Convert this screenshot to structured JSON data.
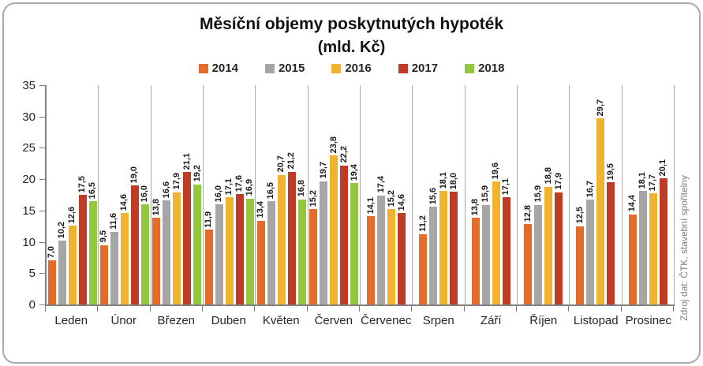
{
  "title": {
    "line1": "Měsíční objemy poskytnutých hypoték",
    "line2": "(mld. Kč)"
  },
  "source_note": "Zdroj dat: ČTK, stavební spořitelny",
  "chart_data": {
    "type": "bar",
    "title": "Měsíční objemy poskytnutých hypoték (mld. Kč)",
    "xlabel": "",
    "ylabel": "",
    "ylim": [
      0,
      35
    ],
    "ytick_step": 5,
    "grid": false,
    "legend_position": "top",
    "value_labels": true,
    "decimal_separator": ",",
    "categories": [
      "Leden",
      "Únor",
      "Březen",
      "Duben",
      "Květen",
      "Červen",
      "Červenec",
      "Srpen",
      "Září",
      "Říjen",
      "Listopad",
      "Prosinec"
    ],
    "series": [
      {
        "name": "2014",
        "color": "#E36C2A",
        "values": [
          7.0,
          9.5,
          13.8,
          11.9,
          13.4,
          15.2,
          14.1,
          11.2,
          13.8,
          12.8,
          12.5,
          14.4
        ]
      },
      {
        "name": "2015",
        "color": "#A6A6A6",
        "values": [
          10.2,
          11.6,
          16.6,
          16.0,
          16.5,
          19.7,
          17.4,
          15.6,
          15.9,
          15.9,
          16.7,
          18.1
        ]
      },
      {
        "name": "2016",
        "color": "#F1B32E",
        "values": [
          12.6,
          14.6,
          17.9,
          17.1,
          20.7,
          23.8,
          15.2,
          18.1,
          19.6,
          18.8,
          29.7,
          17.7
        ]
      },
      {
        "name": "2017",
        "color": "#BE3B26",
        "values": [
          17.5,
          19.0,
          21.1,
          17.6,
          21.2,
          22.2,
          14.6,
          18.0,
          17.1,
          17.9,
          19.5,
          20.1
        ]
      },
      {
        "name": "2018",
        "color": "#92C83E",
        "values": [
          16.5,
          16.0,
          19.2,
          16.9,
          16.8,
          19.4,
          null,
          null,
          null,
          null,
          null,
          null
        ]
      }
    ]
  },
  "y_axis": {
    "ticks": [
      35,
      30,
      25,
      20,
      15,
      10,
      5,
      0
    ]
  }
}
